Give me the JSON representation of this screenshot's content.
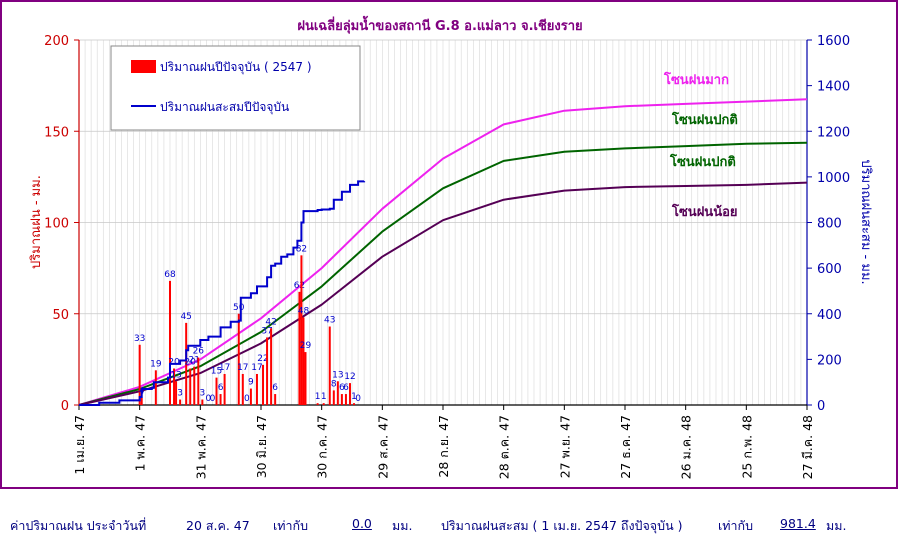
{
  "chart_data": {
    "type": "bar+line",
    "title": "ฝนเฉลี่ยลุ่มน้ำของสถานี G.8 อ.แม่ลาว  จ.เชียงราย",
    "ylabel_left": "ปริมาณฝน  -  มม.",
    "ylabel_right": "ปริมาณฝนสะสม  -  มม.",
    "ylim_left": [
      0,
      200
    ],
    "ylim_right": [
      0,
      1600
    ],
    "yticks_left": [
      "0",
      "50",
      "100",
      "150",
      "200"
    ],
    "yticks_right": [
      "0",
      "200",
      "400",
      "600",
      "800",
      "1000",
      "1200",
      "1400",
      "1600"
    ],
    "xticks": [
      "1 เม.ย. 47",
      "1 พ.ค. 47",
      "31 พ.ค. 47",
      "30 มิ.ย. 47",
      "30 ก.ค. 47",
      "29 ส.ค. 47",
      "28 ก.ย. 47",
      "28 ต.ค. 47",
      "27 พ.ย. 47",
      "27 ธ.ค. 47",
      "26 ม.ค. 48",
      "25 ก.พ. 48",
      "27 มี.ค. 48"
    ],
    "xdomain_days": [
      0,
      360
    ],
    "grid": true,
    "legend_position": "top-left",
    "legend": {
      "bar": "ปริมาณฝนปีปัจจุบัน ( 2547 )",
      "cum": "ปริมาณฝนสะสมปีปัจจุบัน"
    },
    "zone_labels": [
      "โซนฝนมาก",
      "โซนฝนปกติ",
      "โซนฝนปกติ",
      "โซนฝนน้อย"
    ],
    "colors": {
      "bar": "#ff0000",
      "cum": "#0000cc",
      "zone_high": "#ee22ee",
      "zone_normal": "#006400",
      "zone_low": "#550055",
      "title": "#800080",
      "left_axis": "#cc0000",
      "right_axis": "#0000aa"
    },
    "daily_rain": [
      {
        "day": 30,
        "value": 33,
        "label": "33"
      },
      {
        "day": 31,
        "value": 4,
        "label": "4"
      },
      {
        "day": 38,
        "value": 19,
        "label": "19"
      },
      {
        "day": 45,
        "value": 68,
        "label": "68"
      },
      {
        "day": 47,
        "value": 20,
        "label": "20"
      },
      {
        "day": 48,
        "value": 13,
        "label": "13"
      },
      {
        "day": 50,
        "value": 3,
        "label": "3"
      },
      {
        "day": 53,
        "value": 45,
        "label": "45"
      },
      {
        "day": 55,
        "value": 20,
        "label": "20"
      },
      {
        "day": 57,
        "value": 21,
        "label": "21"
      },
      {
        "day": 59,
        "value": 26,
        "label": "26"
      },
      {
        "day": 61,
        "value": 3,
        "label": "3"
      },
      {
        "day": 64,
        "value": 0,
        "label": "0"
      },
      {
        "day": 66,
        "value": 0,
        "label": "0"
      },
      {
        "day": 68,
        "value": 15,
        "label": "15"
      },
      {
        "day": 70,
        "value": 6,
        "label": "6"
      },
      {
        "day": 72,
        "value": 17,
        "label": "17"
      },
      {
        "day": 79,
        "value": 50,
        "label": "50"
      },
      {
        "day": 81,
        "value": 17,
        "label": "17"
      },
      {
        "day": 83,
        "value": 0,
        "label": "0"
      },
      {
        "day": 85,
        "value": 9,
        "label": "9"
      },
      {
        "day": 88,
        "value": 17,
        "label": "17"
      },
      {
        "day": 91,
        "value": 22,
        "label": "22"
      },
      {
        "day": 93,
        "value": 37,
        "label": "37"
      },
      {
        "day": 95,
        "value": 42,
        "label": "42"
      },
      {
        "day": 97,
        "value": 6,
        "label": "6"
      },
      {
        "day": 109,
        "value": 62,
        "label": "62"
      },
      {
        "day": 110,
        "value": 82,
        "label": "82"
      },
      {
        "day": 111,
        "value": 48,
        "label": "48"
      },
      {
        "day": 112,
        "value": 29,
        "label": "29"
      },
      {
        "day": 118,
        "value": 1,
        "label": "1"
      },
      {
        "day": 121,
        "value": 1,
        "label": "1"
      },
      {
        "day": 124,
        "value": 43,
        "label": "43"
      },
      {
        "day": 126,
        "value": 8,
        "label": "8"
      },
      {
        "day": 128,
        "value": 13,
        "label": "13"
      },
      {
        "day": 130,
        "value": 6,
        "label": "6"
      },
      {
        "day": 132,
        "value": 6,
        "label": "6"
      },
      {
        "day": 134,
        "value": 12,
        "label": "12"
      },
      {
        "day": 136,
        "value": 1,
        "label": "1"
      },
      {
        "day": 138,
        "value": 0,
        "label": "0"
      }
    ],
    "cumulative_current": {
      "day": [
        0,
        10,
        20,
        30,
        31,
        36,
        37,
        44,
        45,
        50,
        53,
        54,
        60,
        64,
        70,
        75,
        79,
        80,
        85,
        88,
        93,
        95,
        97,
        100,
        103,
        106,
        108,
        110,
        111,
        113,
        118,
        120,
        124,
        126,
        130,
        134,
        138,
        141
      ],
      "value": [
        0,
        10,
        20,
        35,
        70,
        75,
        100,
        120,
        180,
        195,
        240,
        260,
        285,
        300,
        340,
        365,
        370,
        470,
        490,
        520,
        560,
        610,
        620,
        650,
        660,
        690,
        720,
        800,
        850,
        850,
        855,
        857,
        860,
        900,
        935,
        965,
        980,
        981.4
      ]
    },
    "zone_high": {
      "day": [
        0,
        30,
        60,
        90,
        120,
        150,
        180,
        210,
        240,
        270,
        300,
        330,
        360
      ],
      "value": [
        0,
        80,
        200,
        380,
        600,
        860,
        1080,
        1230,
        1290,
        1310,
        1320,
        1330,
        1340
      ]
    },
    "zone_normal_upper": {
      "day": [
        0,
        30,
        60,
        90,
        120,
        150,
        180,
        210,
        240,
        270,
        300,
        330,
        360
      ],
      "value": [
        0,
        70,
        170,
        320,
        520,
        760,
        950,
        1070,
        1110,
        1125,
        1135,
        1145,
        1150
      ]
    },
    "zone_low": {
      "day": [
        0,
        30,
        60,
        90,
        120,
        150,
        180,
        210,
        240,
        270,
        300,
        330,
        360
      ],
      "value": [
        0,
        60,
        140,
        270,
        440,
        650,
        810,
        900,
        940,
        955,
        960,
        965,
        975
      ]
    }
  },
  "footer": {
    "daily_label": "ค่าปริมาณฝน  ประจำวันที่",
    "daily_date": "20 ส.ค. 47",
    "equals_1": "เท่ากับ",
    "daily_value": "0.0",
    "unit_1": "มม.",
    "cum_label": "ปริมาณฝนสะสม ( 1 เม.ย. 2547 ถึงปัจจุบัน )",
    "equals_2": "เท่ากับ",
    "cum_value": "981.4",
    "unit_2": "มม."
  }
}
